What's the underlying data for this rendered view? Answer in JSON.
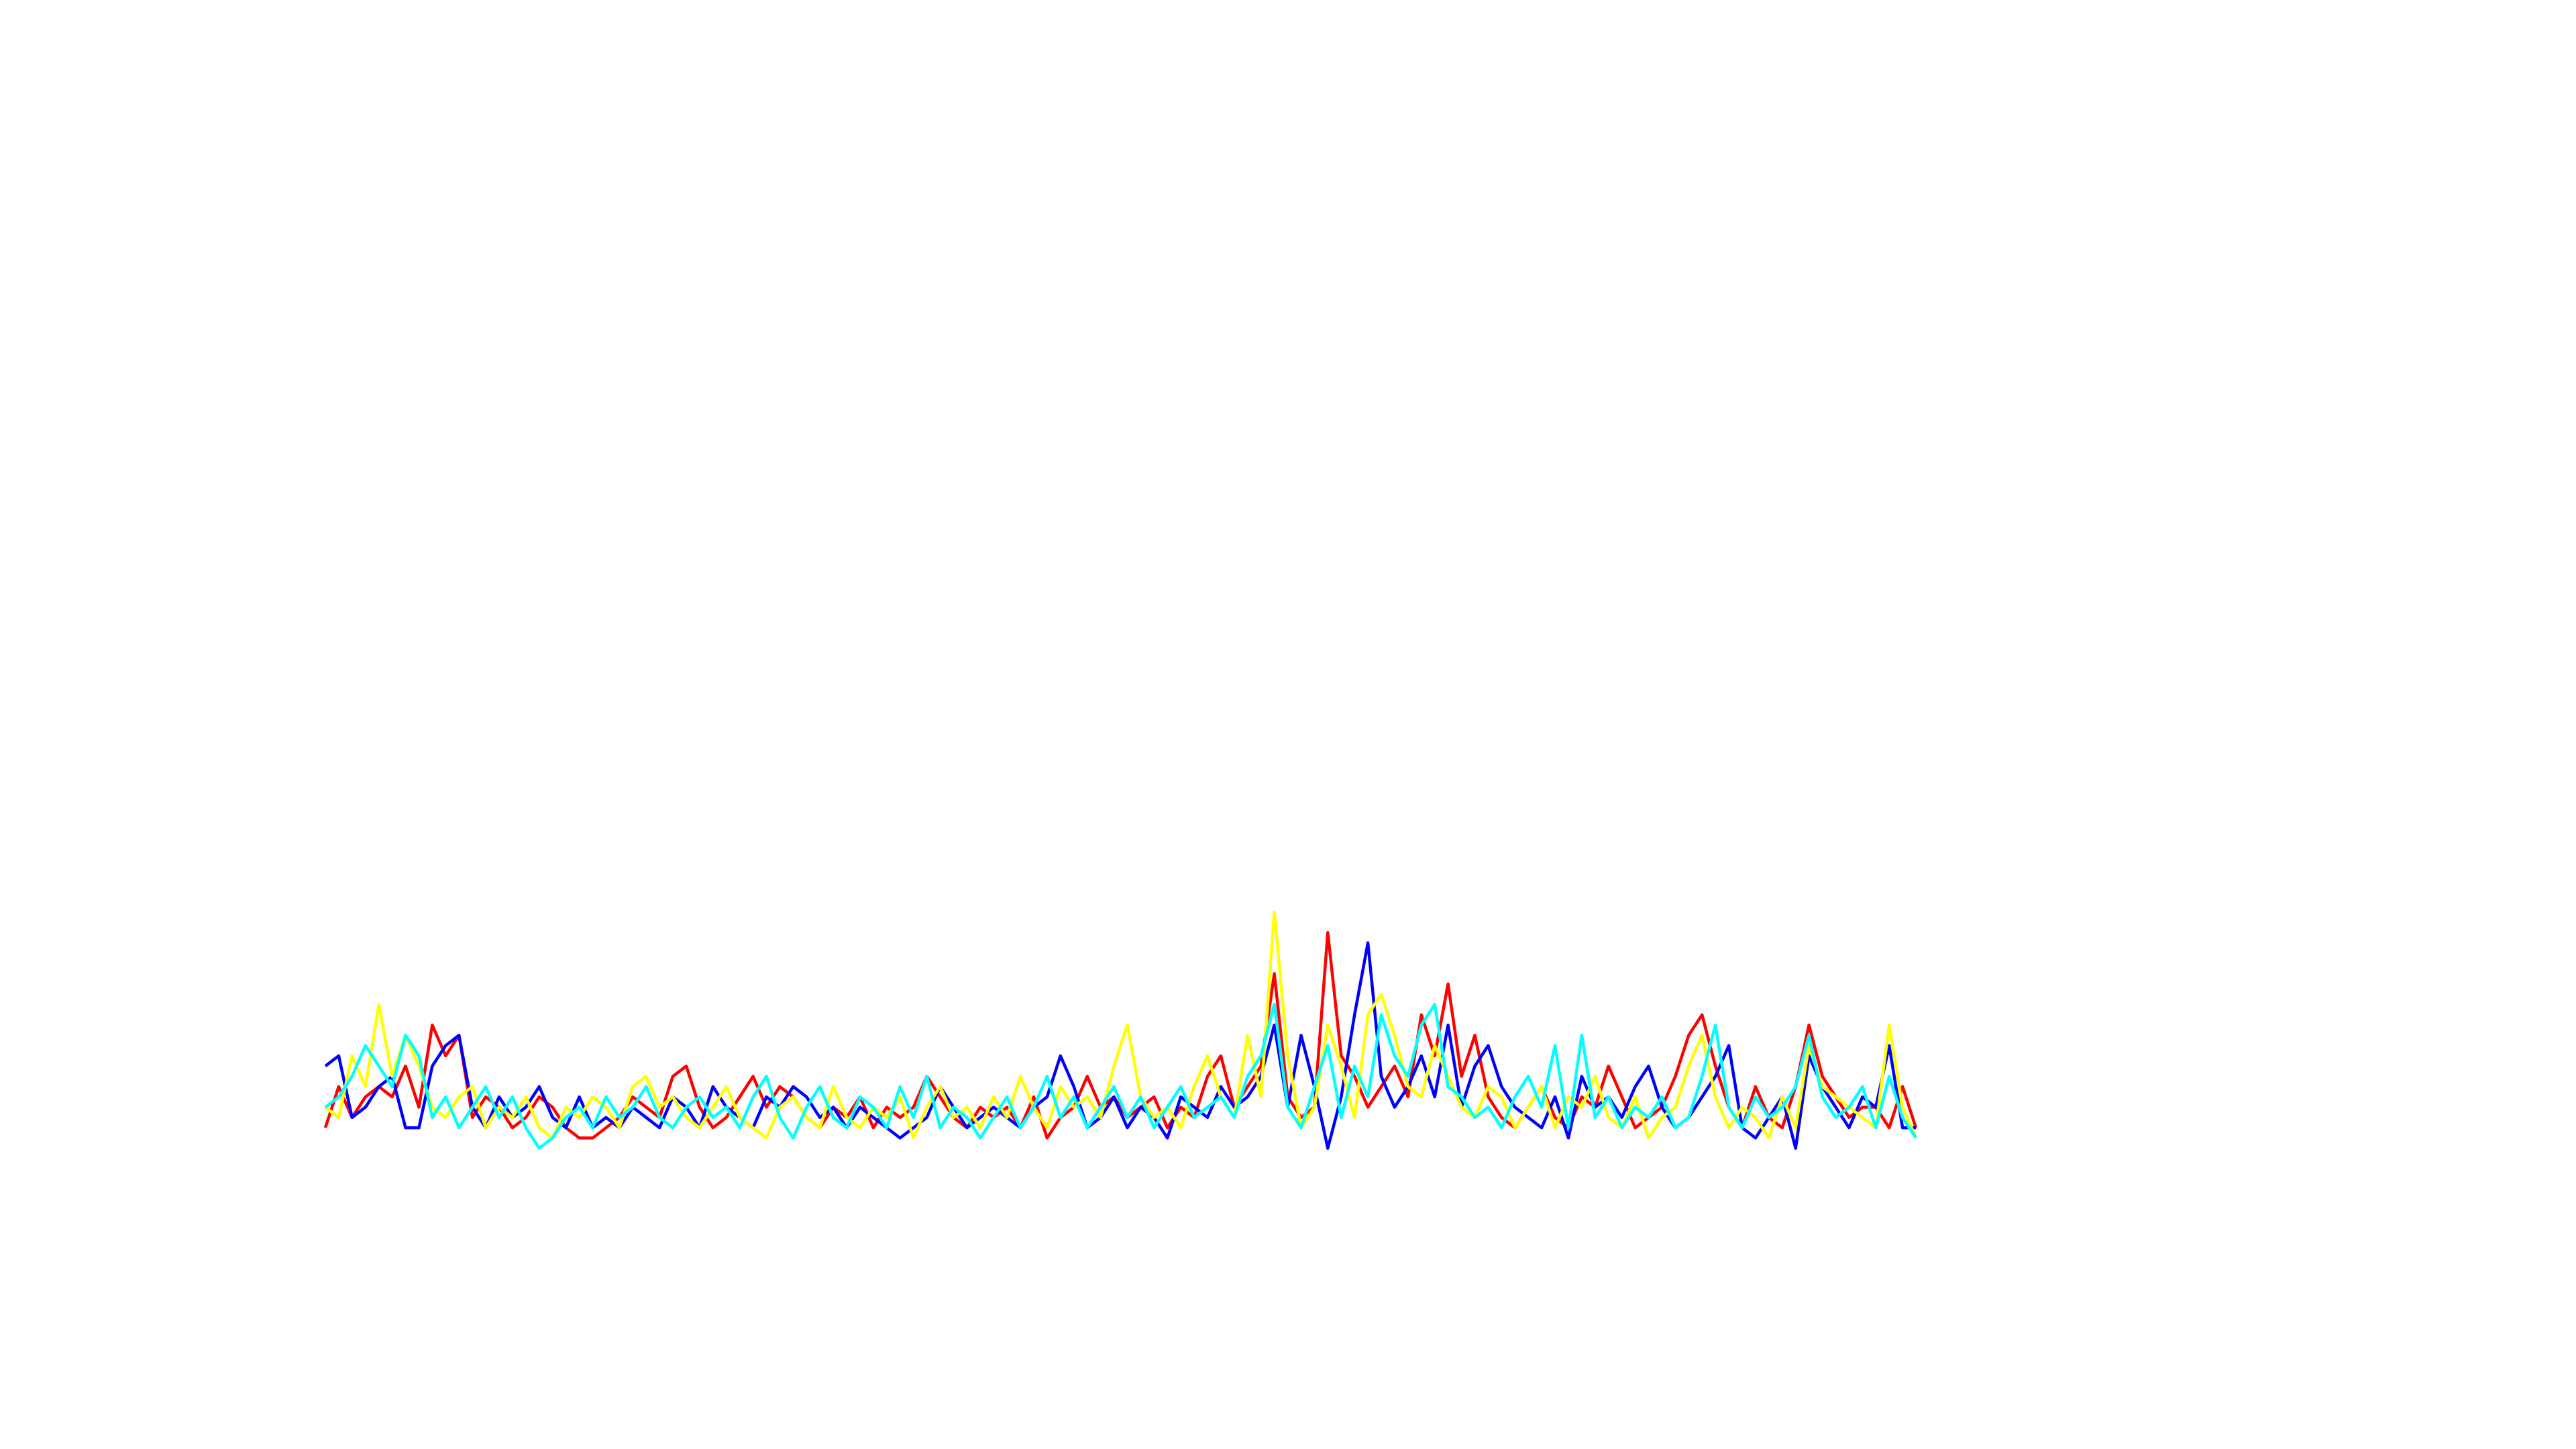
{
  "chart_data": {
    "type": "line",
    "ylim": [
      0,
      100
    ],
    "series": [
      {
        "name": "red",
        "color": "#ff0000",
        "values": [
          3,
          7,
          4,
          6,
          7,
          6,
          9,
          5,
          13,
          10,
          12,
          4,
          6,
          5,
          3,
          4,
          6,
          5,
          3,
          2,
          2,
          3,
          4,
          6,
          5,
          4,
          8,
          9,
          5,
          3,
          4,
          6,
          8,
          5,
          7,
          6,
          4,
          3,
          5,
          4,
          6,
          3,
          5,
          4,
          5,
          8,
          6,
          4,
          3,
          5,
          4,
          5,
          3,
          6,
          2,
          4,
          5,
          8,
          5,
          6,
          4,
          5,
          6,
          3,
          5,
          4,
          8,
          10,
          5,
          7,
          9,
          18,
          6,
          4,
          5,
          22,
          10,
          8,
          5,
          7,
          9,
          6,
          14,
          10,
          17,
          8,
          12,
          6,
          4,
          3,
          5,
          7,
          4,
          3,
          6,
          5,
          9,
          6,
          3,
          4,
          5,
          8,
          12,
          14,
          9,
          5,
          3,
          7,
          4,
          3,
          7,
          13,
          8,
          6,
          4,
          5,
          5,
          3,
          7,
          3
        ]
      },
      {
        "name": "blue",
        "color": "#0000ff",
        "values": [
          9,
          10,
          4,
          5,
          7,
          8,
          3,
          3,
          9,
          11,
          12,
          5,
          3,
          6,
          4,
          5,
          7,
          4,
          3,
          6,
          3,
          4,
          3,
          5,
          4,
          3,
          6,
          5,
          3,
          7,
          5,
          4,
          3,
          6,
          5,
          7,
          6,
          4,
          5,
          3,
          5,
          4,
          3,
          2,
          3,
          4,
          7,
          5,
          3,
          4,
          5,
          4,
          3,
          5,
          6,
          10,
          7,
          3,
          4,
          6,
          3,
          5,
          4,
          2,
          6,
          5,
          4,
          7,
          5,
          6,
          8,
          13,
          5,
          12,
          7,
          1,
          6,
          14,
          21,
          8,
          5,
          7,
          10,
          6,
          13,
          5,
          9,
          11,
          7,
          5,
          4,
          3,
          6,
          2,
          8,
          5,
          6,
          4,
          7,
          9,
          5,
          3,
          4,
          6,
          8,
          11,
          3,
          2,
          4,
          6,
          1,
          10,
          7,
          5,
          3,
          6,
          5,
          11,
          3,
          3
        ]
      },
      {
        "name": "yellow",
        "color": "#ffff00",
        "values": [
          5,
          4,
          10,
          7,
          15,
          8,
          12,
          9,
          5,
          4,
          6,
          7,
          3,
          5,
          4,
          6,
          3,
          2,
          5,
          4,
          6,
          5,
          3,
          7,
          8,
          5,
          6,
          4,
          3,
          5,
          7,
          4,
          3,
          2,
          5,
          6,
          4,
          3,
          7,
          4,
          3,
          5,
          4,
          6,
          2,
          5,
          7,
          4,
          5,
          3,
          6,
          4,
          8,
          5,
          3,
          7,
          5,
          6,
          4,
          9,
          13,
          6,
          4,
          5,
          3,
          7,
          10,
          6,
          4,
          12,
          6,
          24,
          10,
          3,
          5,
          13,
          9,
          4,
          14,
          16,
          12,
          7,
          6,
          11,
          8,
          5,
          4,
          7,
          6,
          3,
          5,
          7,
          3,
          6,
          5,
          8,
          4,
          3,
          6,
          2,
          4,
          5,
          9,
          12,
          6,
          3,
          5,
          4,
          2,
          6,
          3,
          11,
          7,
          6,
          5,
          4,
          3,
          13,
          5,
          2
        ]
      },
      {
        "name": "cyan",
        "color": "#00ffff",
        "values": [
          5,
          6,
          8,
          11,
          9,
          7,
          12,
          10,
          4,
          6,
          3,
          5,
          7,
          4,
          6,
          3,
          1,
          2,
          4,
          5,
          3,
          6,
          4,
          5,
          7,
          4,
          3,
          5,
          6,
          4,
          5,
          3,
          6,
          8,
          4,
          2,
          5,
          7,
          4,
          3,
          6,
          5,
          3,
          7,
          4,
          8,
          3,
          5,
          4,
          2,
          4,
          6,
          3,
          5,
          8,
          4,
          6,
          3,
          5,
          7,
          4,
          6,
          3,
          5,
          7,
          4,
          5,
          6,
          4,
          8,
          10,
          15,
          5,
          3,
          7,
          11,
          4,
          9,
          6,
          14,
          10,
          8,
          13,
          15,
          7,
          6,
          4,
          5,
          3,
          6,
          8,
          5,
          11,
          3,
          12,
          4,
          6,
          3,
          5,
          4,
          6,
          3,
          4,
          8,
          13,
          5,
          3,
          6,
          4,
          5,
          7,
          12,
          6,
          4,
          5,
          7,
          3,
          8,
          4,
          2
        ]
      }
    ]
  }
}
